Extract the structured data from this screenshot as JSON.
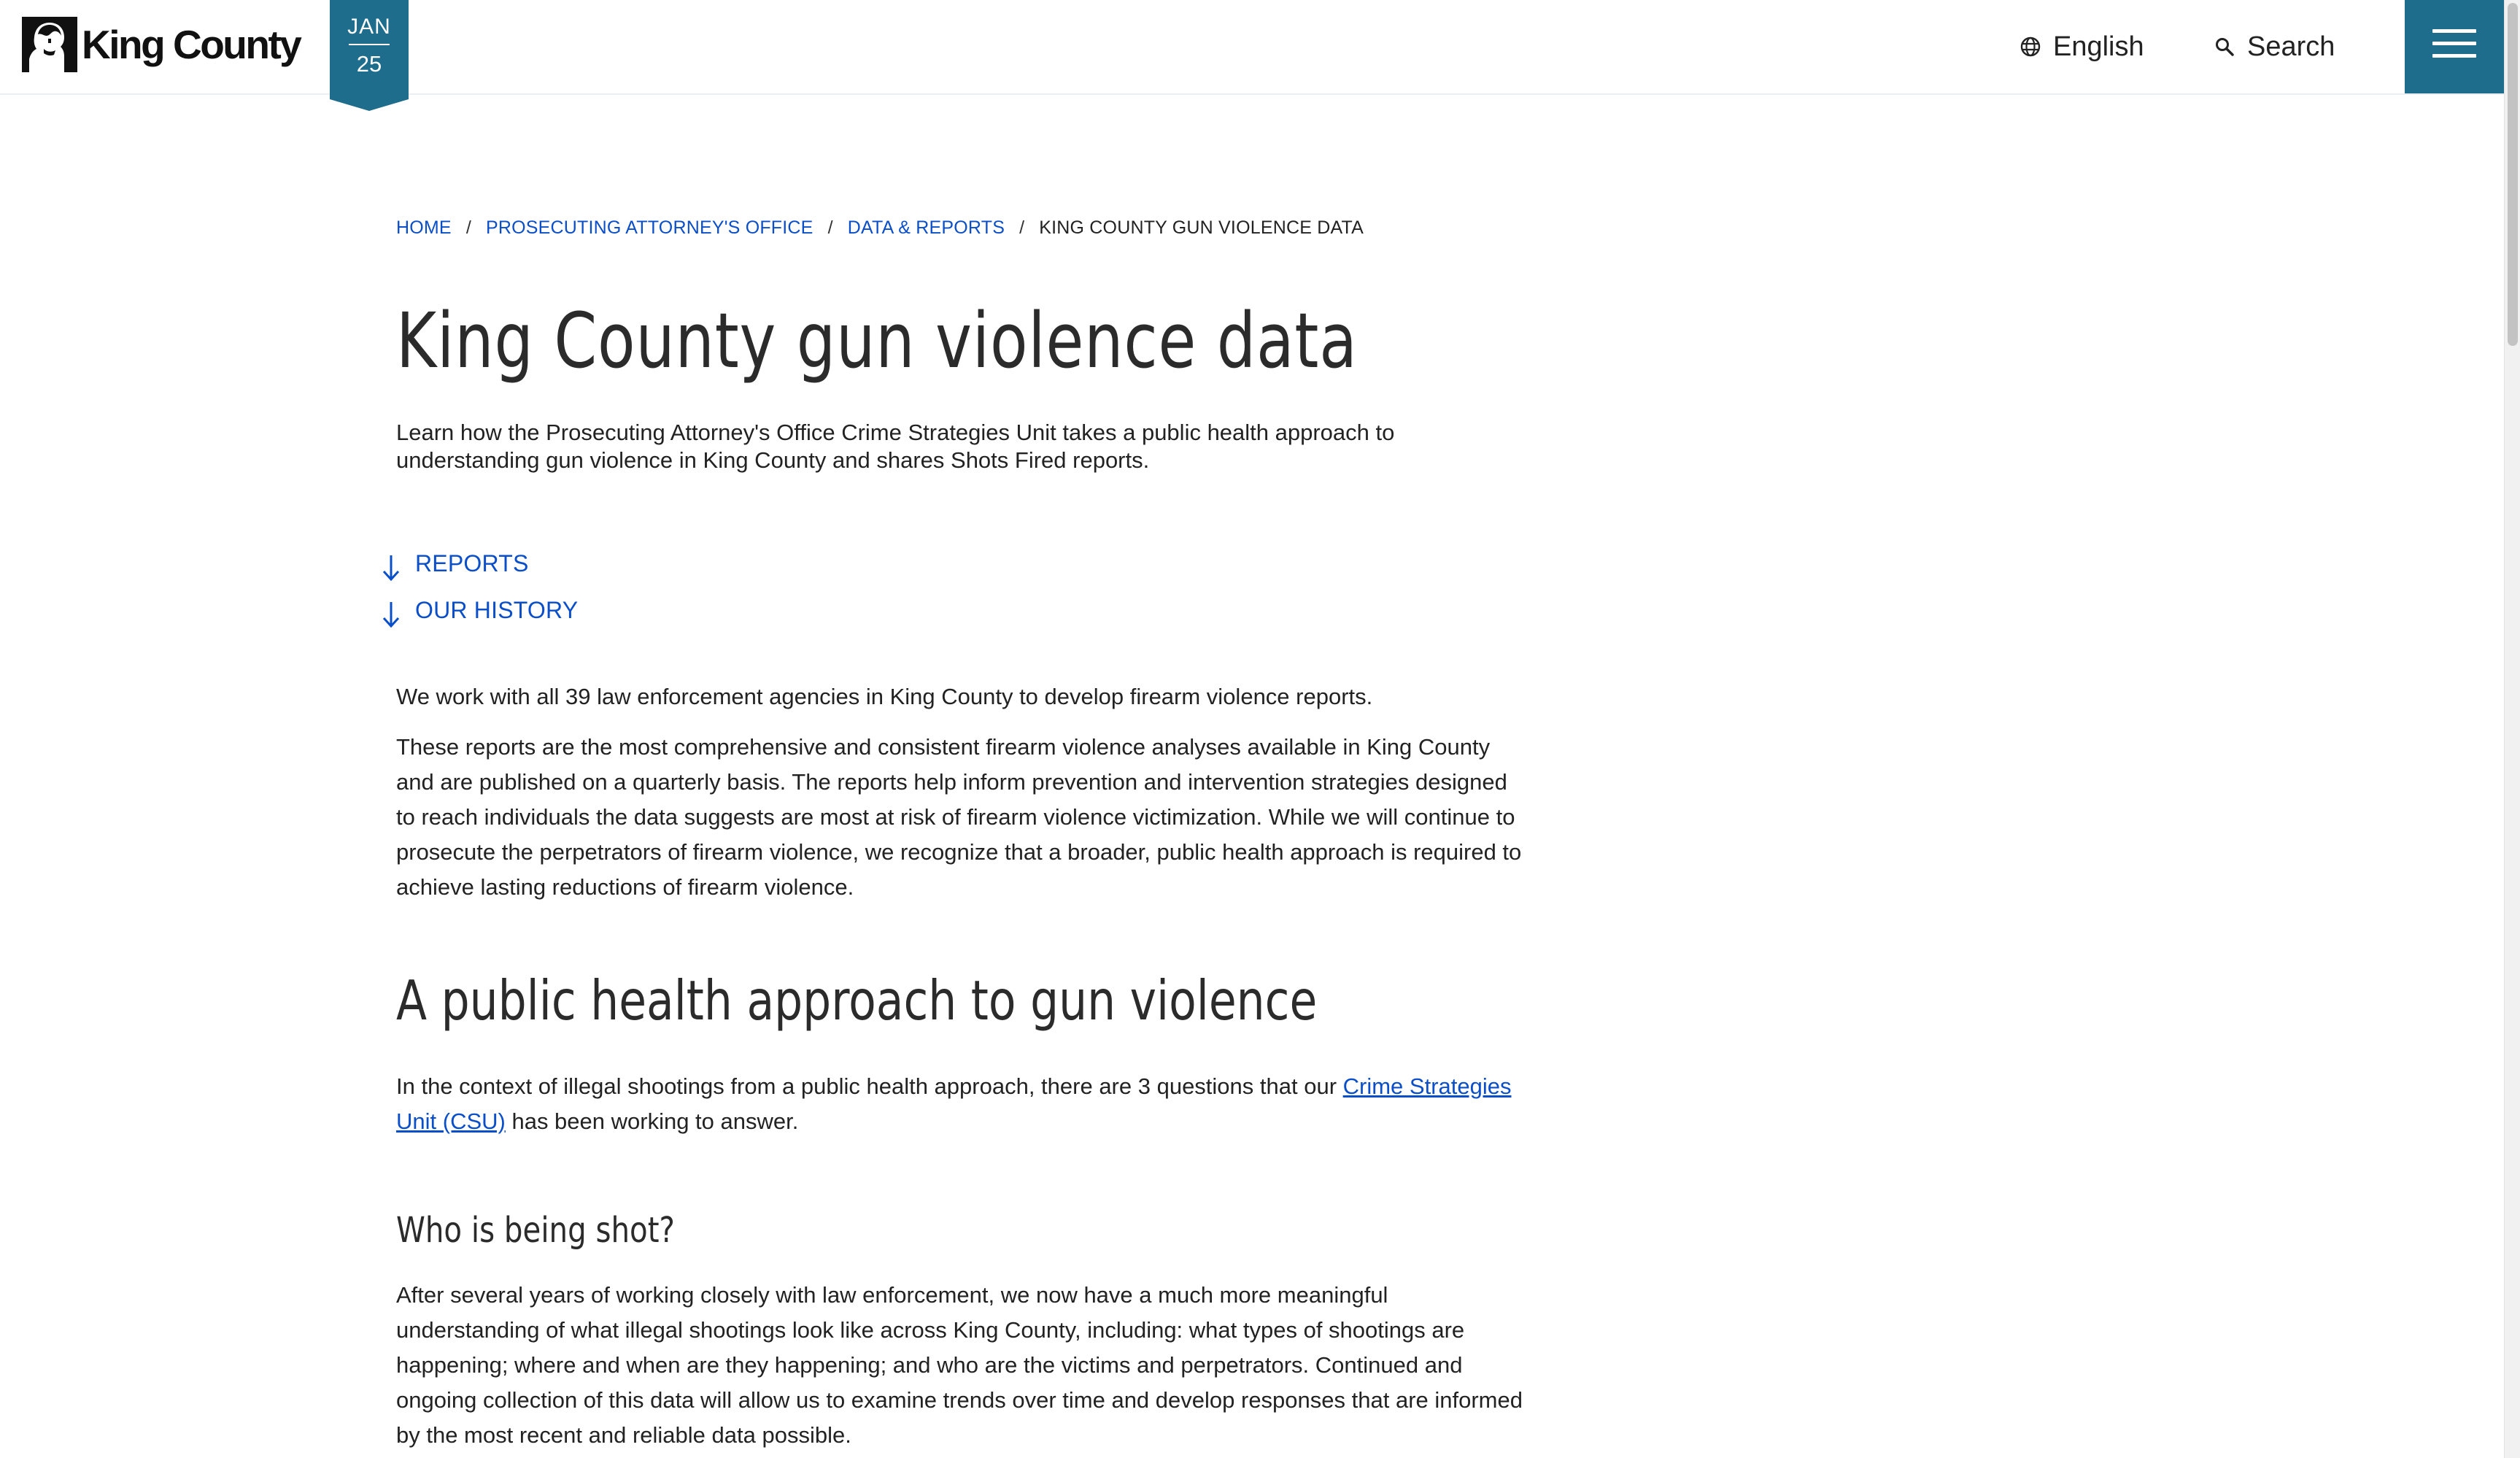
{
  "header": {
    "logo_text": "King County",
    "date": {
      "month": "JAN",
      "day": "25"
    },
    "language_label": "English",
    "search_label": "Search",
    "colors": {
      "accent": "#1f6d8c",
      "link": "#0a4fc9"
    }
  },
  "breadcrumb": {
    "home": "HOME",
    "prosecuting": "PROSECUTING ATTORNEY'S OFFICE",
    "data_reports": "DATA & REPORTS",
    "current": "KING COUNTY GUN VIOLENCE DATA"
  },
  "page": {
    "title": "King County gun violence data",
    "lede": "Learn how the Prosecuting Attorney's Office Crime Strategies Unit takes a public health approach to understanding gun violence in King County and shares Shots Fired reports."
  },
  "jump_links": [
    {
      "label": "REPORTS",
      "icon": "arrow-down-icon"
    },
    {
      "label": "OUR HISTORY",
      "icon": "arrow-down-icon"
    }
  ],
  "content": {
    "p1": "We work with all 39 law enforcement agencies in King County to develop firearm violence reports.",
    "p2": "These reports are the most comprehensive and consistent firearm violence analyses available in King County and are published on a quarterly basis. The reports help inform prevention and intervention strategies designed to reach individuals the data suggests are most at risk of firearm violence victimization. While we will continue to prosecute the perpetrators of firearm violence, we recognize that a broader, public health approach is required to achieve lasting reductions of firearm violence.",
    "h2": "A public health approach to gun violence",
    "p3_before": "In the context of illegal shootings from a public health approach, there are 3 questions that our ",
    "p3_link": "Crime Strategies Unit (CSU)",
    "p3_after": " has been working to answer.",
    "h3": "Who is being shot?",
    "p4": "After several years of working closely with law enforcement, we now have a much more meaningful understanding of what illegal shootings look like across King County, including: what types of shootings are happening; where and when are they happening; and who are the victims and perpetrators. Continued and ongoing collection of this data will allow us to examine trends over time and develop responses that are informed by the most recent and reliable data possible."
  }
}
